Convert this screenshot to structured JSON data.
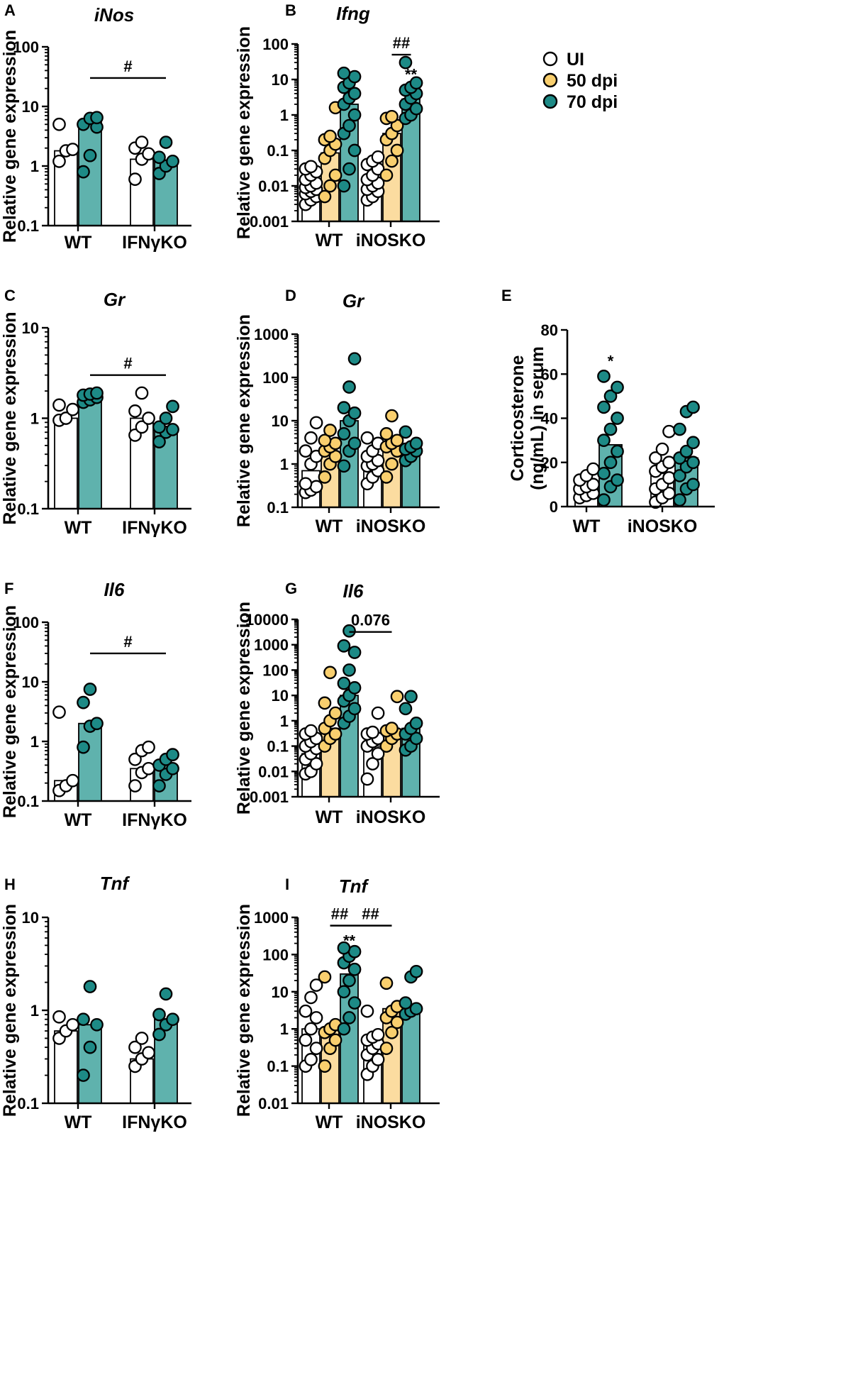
{
  "colors": {
    "UI": "#ffffff",
    "50 dpi": "#f9cf6e",
    "70 dpi": "#1d8a86",
    "bar_UI": "#ffffff",
    "bar_50 dpi": "#fbdca0",
    "bar_70 dpi": "#5fb2ad"
  },
  "legend": {
    "items": [
      "UI",
      "50 dpi",
      "70 dpi"
    ]
  },
  "chart_data": [
    {
      "id": "A",
      "letter": "A",
      "title": "iNos",
      "type": "bar",
      "ylabel": "Relative gene expression",
      "scale": "log",
      "ylim": [
        0.1,
        100
      ],
      "yticks": [
        0.1,
        1,
        10,
        100
      ],
      "yticklabels": [
        "0.1",
        "1",
        "10",
        "100"
      ],
      "categories": [
        "WT",
        "IFNγKO"
      ],
      "series": [
        "UI",
        "70 dpi"
      ],
      "bars": [
        [
          1.8,
          5.5
        ],
        [
          1.3,
          1.2
        ]
      ],
      "points": [
        [
          [
            1.2,
            1.8,
            1.9,
            5.0
          ],
          [
            0.8,
            1.5,
            4.5,
            5.0,
            6.3,
            6.5
          ]
        ],
        [
          [
            0.6,
            1.3,
            1.6,
            2.0,
            2.5
          ],
          [
            0.75,
            1.0,
            1.2,
            1.4,
            2.5
          ]
        ]
      ],
      "annotations": [
        {
          "text": "#",
          "type": "bracket",
          "from": [
            0,
            1
          ],
          "to": [
            1,
            1
          ],
          "y": 30
        }
      ]
    },
    {
      "id": "B",
      "letter": "B",
      "title": "Ifng",
      "type": "bar",
      "ylabel": "Relative gene expression",
      "scale": "log",
      "ylim": [
        0.001,
        100
      ],
      "yticks": [
        0.001,
        0.01,
        0.1,
        1,
        10,
        100
      ],
      "yticklabels": [
        "0.001",
        "0.01",
        "0.1",
        "1",
        "10",
        "100"
      ],
      "categories": [
        "WT",
        "iNOSKO"
      ],
      "series": [
        "UI",
        "50 dpi",
        "70 dpi"
      ],
      "bars": [
        [
          0.011,
          0.085,
          2.0
        ],
        [
          0.014,
          0.3,
          2.8
        ]
      ],
      "points": [
        [
          [
            0.003,
            0.004,
            0.005,
            0.006,
            0.007,
            0.008,
            0.009,
            0.01,
            0.012,
            0.015,
            0.02,
            0.025,
            0.03,
            0.035
          ],
          [
            0.005,
            0.01,
            0.02,
            0.06,
            0.1,
            0.15,
            0.2,
            0.25,
            1.6
          ],
          [
            0.01,
            0.03,
            0.1,
            0.3,
            0.5,
            1.0,
            2.0,
            3.0,
            4.0,
            6.0,
            8.0,
            12.0,
            15.0
          ]
        ],
        [
          [
            0.004,
            0.005,
            0.007,
            0.008,
            0.01,
            0.012,
            0.015,
            0.02,
            0.03,
            0.04,
            0.05,
            0.065
          ],
          [
            0.02,
            0.05,
            0.1,
            0.2,
            0.3,
            0.5,
            0.8,
            0.9
          ],
          [
            0.8,
            1.0,
            1.5,
            2.0,
            3.0,
            4.0,
            5.0,
            6.0,
            8.0,
            30.0
          ]
        ]
      ],
      "annotations": [
        {
          "text": "##",
          "type": "bracket",
          "from": [
            1,
            1
          ],
          "to": [
            1,
            2
          ],
          "y": 50
        },
        {
          "text": "**",
          "type": "star",
          "at": [
            1,
            2
          ],
          "y": 14
        }
      ]
    },
    {
      "id": "C",
      "letter": "C",
      "title": "Gr",
      "type": "bar",
      "ylabel": "Relative gene expression",
      "scale": "log",
      "ylim": [
        0.1,
        10
      ],
      "yticks": [
        0.1,
        1,
        10
      ],
      "yticklabels": [
        "0.1",
        "1",
        "10"
      ],
      "categories": [
        "WT",
        "IFNγKO"
      ],
      "series": [
        "UI",
        "70 dpi"
      ],
      "bars": [
        [
          1.0,
          1.7
        ],
        [
          1.0,
          0.8
        ]
      ],
      "points": [
        [
          [
            0.95,
            1.0,
            1.25,
            1.4
          ],
          [
            1.5,
            1.6,
            1.7,
            1.8,
            1.85,
            1.9
          ]
        ],
        [
          [
            0.65,
            0.8,
            1.0,
            1.2,
            1.9
          ],
          [
            0.55,
            0.7,
            0.75,
            0.8,
            1.0,
            1.35
          ]
        ]
      ],
      "annotations": [
        {
          "text": "#",
          "type": "bracket",
          "from": [
            0,
            1
          ],
          "to": [
            1,
            1
          ],
          "y": 3.0
        }
      ]
    },
    {
      "id": "D",
      "letter": "D",
      "title": "Gr",
      "type": "bar",
      "ylabel": "Relative gene expression",
      "scale": "log",
      "ylim": [
        0.1,
        1000
      ],
      "yticks": [
        0.1,
        1,
        10,
        100,
        1000
      ],
      "yticklabels": [
        "0.1",
        "1",
        "10",
        "100",
        "1000"
      ],
      "categories": [
        "WT",
        "iNOSKO"
      ],
      "series": [
        "UI",
        "50 dpi",
        "70 dpi"
      ],
      "bars": [
        [
          0.7,
          1.8,
          10.0
        ],
        [
          1.0,
          2.8,
          2.2
        ]
      ],
      "points": [
        [
          [
            0.22,
            0.25,
            0.3,
            0.35,
            1.0,
            1.5,
            2.0,
            4.0,
            9.0
          ],
          [
            0.5,
            1.0,
            1.5,
            2.0,
            2.5,
            3.0,
            3.5,
            6.0
          ],
          [
            0.9,
            2.0,
            3.0,
            5.0,
            10.0,
            15.0,
            20.0,
            60.0,
            270.0
          ]
        ],
        [
          [
            0.35,
            0.5,
            0.7,
            0.9,
            1.0,
            1.2,
            1.5,
            2.0,
            3.0,
            4.0
          ],
          [
            0.5,
            1.0,
            2.0,
            2.5,
            3.0,
            3.5,
            5.0,
            13.0
          ],
          [
            1.2,
            1.5,
            2.0,
            2.2,
            2.5,
            3.0,
            5.5
          ]
        ]
      ],
      "annotations": []
    },
    {
      "id": "E",
      "letter": "E",
      "title": "",
      "type": "bar",
      "ylabel": "Corticosterone (ng/mL) in serum",
      "ylabel_lines": [
        "Corticosterone",
        "(ng/mL) in serum"
      ],
      "scale": "linear",
      "ylim": [
        0,
        80
      ],
      "yticks": [
        0,
        20,
        40,
        60,
        80
      ],
      "yticklabels": [
        "0",
        "20",
        "40",
        "60",
        "80"
      ],
      "categories": [
        "WT",
        "iNOSKO"
      ],
      "series": [
        "UI",
        "70 dpi"
      ],
      "bars": [
        [
          10.0,
          28.0
        ],
        [
          15.0,
          22.0
        ]
      ],
      "points": [
        [
          [
            4.0,
            5.0,
            6.0,
            8.0,
            9.0,
            10.0,
            12.0,
            14.0,
            17.0
          ],
          [
            3.0,
            9.0,
            12.0,
            15.0,
            20.0,
            25.0,
            30.0,
            35.0,
            40.0,
            45.0,
            50.0,
            54.0,
            59.0
          ]
        ],
        [
          [
            2.0,
            4.0,
            6.0,
            8.0,
            10.0,
            13.0,
            16.0,
            18.0,
            20.0,
            22.0,
            26.0,
            34.0
          ],
          [
            3.0,
            8.0,
            10.0,
            14.0,
            18.0,
            20.0,
            22.0,
            25.0,
            29.0,
            35.0,
            43.0,
            45.0
          ]
        ]
      ],
      "annotations": [
        {
          "text": "*",
          "type": "star",
          "at": [
            0,
            1
          ],
          "y": 66
        }
      ]
    },
    {
      "id": "F",
      "letter": "F",
      "title": "Il6",
      "type": "bar",
      "ylabel": "Relative gene expression",
      "scale": "log",
      "ylim": [
        0.1,
        100
      ],
      "yticks": [
        0.1,
        1,
        10,
        100
      ],
      "yticklabels": [
        "0.1",
        "1",
        "10",
        "100"
      ],
      "categories": [
        "WT",
        "IFNγKO"
      ],
      "series": [
        "UI",
        "70 dpi"
      ],
      "bars": [
        [
          0.22,
          2.0
        ],
        [
          0.35,
          0.4
        ]
      ],
      "points": [
        [
          [
            0.15,
            0.18,
            0.22,
            3.1
          ],
          [
            0.8,
            1.8,
            2.0,
            4.5,
            7.5
          ]
        ],
        [
          [
            0.18,
            0.3,
            0.35,
            0.5,
            0.7,
            0.8
          ],
          [
            0.18,
            0.28,
            0.35,
            0.4,
            0.5,
            0.6
          ]
        ]
      ],
      "annotations": [
        {
          "text": "#",
          "type": "bracket",
          "from": [
            0,
            1
          ],
          "to": [
            1,
            1
          ],
          "y": 30
        }
      ]
    },
    {
      "id": "G",
      "letter": "G",
      "title": "Il6",
      "type": "bar",
      "ylabel": "Relative gene expression",
      "scale": "log",
      "ylim": [
        0.001,
        10000
      ],
      "yticks": [
        0.001,
        0.01,
        0.1,
        1,
        10,
        100,
        1000,
        10000
      ],
      "yticklabels": [
        "0.001",
        "0.01",
        "0.1",
        "1",
        "10",
        "100",
        "1000",
        "10000"
      ],
      "categories": [
        "WT",
        "iNOSKO"
      ],
      "series": [
        "UI",
        "50 dpi",
        "70 dpi"
      ],
      "bars": [
        [
          0.05,
          0.5,
          10.0
        ],
        [
          0.1,
          0.4,
          0.5
        ]
      ],
      "points": [
        [
          [
            0.008,
            0.01,
            0.02,
            0.03,
            0.05,
            0.08,
            0.1,
            0.15,
            0.2,
            0.3,
            0.4
          ],
          [
            0.1,
            0.2,
            0.3,
            0.5,
            1.0,
            2.0,
            5.0,
            80.0
          ],
          [
            0.8,
            1.5,
            3.0,
            6.0,
            10.0,
            20.0,
            30.0,
            100.0,
            500.0,
            900.0,
            3500.0
          ]
        ],
        [
          [
            0.005,
            0.02,
            0.05,
            0.1,
            0.15,
            0.2,
            0.3,
            0.35,
            2.0
          ],
          [
            0.1,
            0.2,
            0.3,
            0.4,
            0.5,
            9.0
          ],
          [
            0.07,
            0.1,
            0.2,
            0.3,
            0.5,
            0.8,
            3.0,
            9.0
          ]
        ]
      ],
      "annotations": [
        {
          "text": "0.076",
          "type": "bracket",
          "from": [
            0,
            2
          ],
          "to": [
            1,
            1
          ],
          "y": 3200
        }
      ]
    },
    {
      "id": "H",
      "letter": "H",
      "title": "Tnf",
      "type": "bar",
      "ylabel": "Relative gene expression",
      "scale": "log",
      "ylim": [
        0.1,
        10
      ],
      "yticks": [
        0.1,
        1,
        10
      ],
      "yticklabels": [
        "0.1",
        "1",
        "10"
      ],
      "categories": [
        "WT",
        "IFNγKO"
      ],
      "series": [
        "UI",
        "70 dpi"
      ],
      "bars": [
        [
          0.6,
          0.7
        ],
        [
          0.3,
          0.8
        ]
      ],
      "points": [
        [
          [
            0.5,
            0.6,
            0.7,
            0.85
          ],
          [
            0.2,
            0.4,
            0.7,
            0.8,
            1.8
          ]
        ],
        [
          [
            0.25,
            0.3,
            0.35,
            0.4,
            0.5
          ],
          [
            0.55,
            0.7,
            0.8,
            0.9,
            1.5
          ]
        ]
      ],
      "annotations": []
    },
    {
      "id": "I",
      "letter": "I",
      "title": "Tnf",
      "type": "bar",
      "ylabel": "Relative gene expression",
      "scale": "log",
      "ylim": [
        0.01,
        1000
      ],
      "yticks": [
        0.01,
        0.1,
        1,
        10,
        100,
        1000
      ],
      "yticklabels": [
        "0.01",
        "0.1",
        "1",
        "10",
        "100",
        "1000"
      ],
      "categories": [
        "WT",
        "iNOSKO"
      ],
      "series": [
        "UI",
        "50 dpi",
        "70 dpi"
      ],
      "bars": [
        [
          1.0,
          1.0,
          30.0
        ],
        [
          0.5,
          3.5,
          3.5
        ]
      ],
      "points": [
        [
          [
            0.1,
            0.15,
            0.3,
            0.5,
            1.0,
            2.0,
            3.0,
            7.0,
            15.0
          ],
          [
            0.1,
            0.3,
            0.5,
            0.8,
            1.0,
            1.3,
            25.0
          ],
          [
            1.0,
            2.0,
            5.0,
            10.0,
            20.0,
            40.0,
            60.0,
            90.0,
            120.0,
            150.0
          ]
        ],
        [
          [
            0.06,
            0.1,
            0.15,
            0.2,
            0.3,
            0.4,
            0.5,
            0.6,
            0.7,
            3.0
          ],
          [
            0.3,
            0.8,
            1.5,
            2.0,
            3.0,
            4.0,
            17.0
          ],
          [
            2.5,
            3.0,
            3.5,
            5.0,
            25.0,
            35.0
          ]
        ]
      ],
      "annotations": [
        {
          "text": "##",
          "type": "bracket",
          "from": [
            0,
            1
          ],
          "to": [
            0,
            2
          ],
          "y": 600
        },
        {
          "text": "##",
          "type": "bracket",
          "from": [
            0,
            2
          ],
          "to": [
            1,
            1
          ],
          "y": 600
        },
        {
          "text": "**",
          "type": "star",
          "at": [
            0,
            2
          ],
          "y": 240
        }
      ]
    }
  ]
}
